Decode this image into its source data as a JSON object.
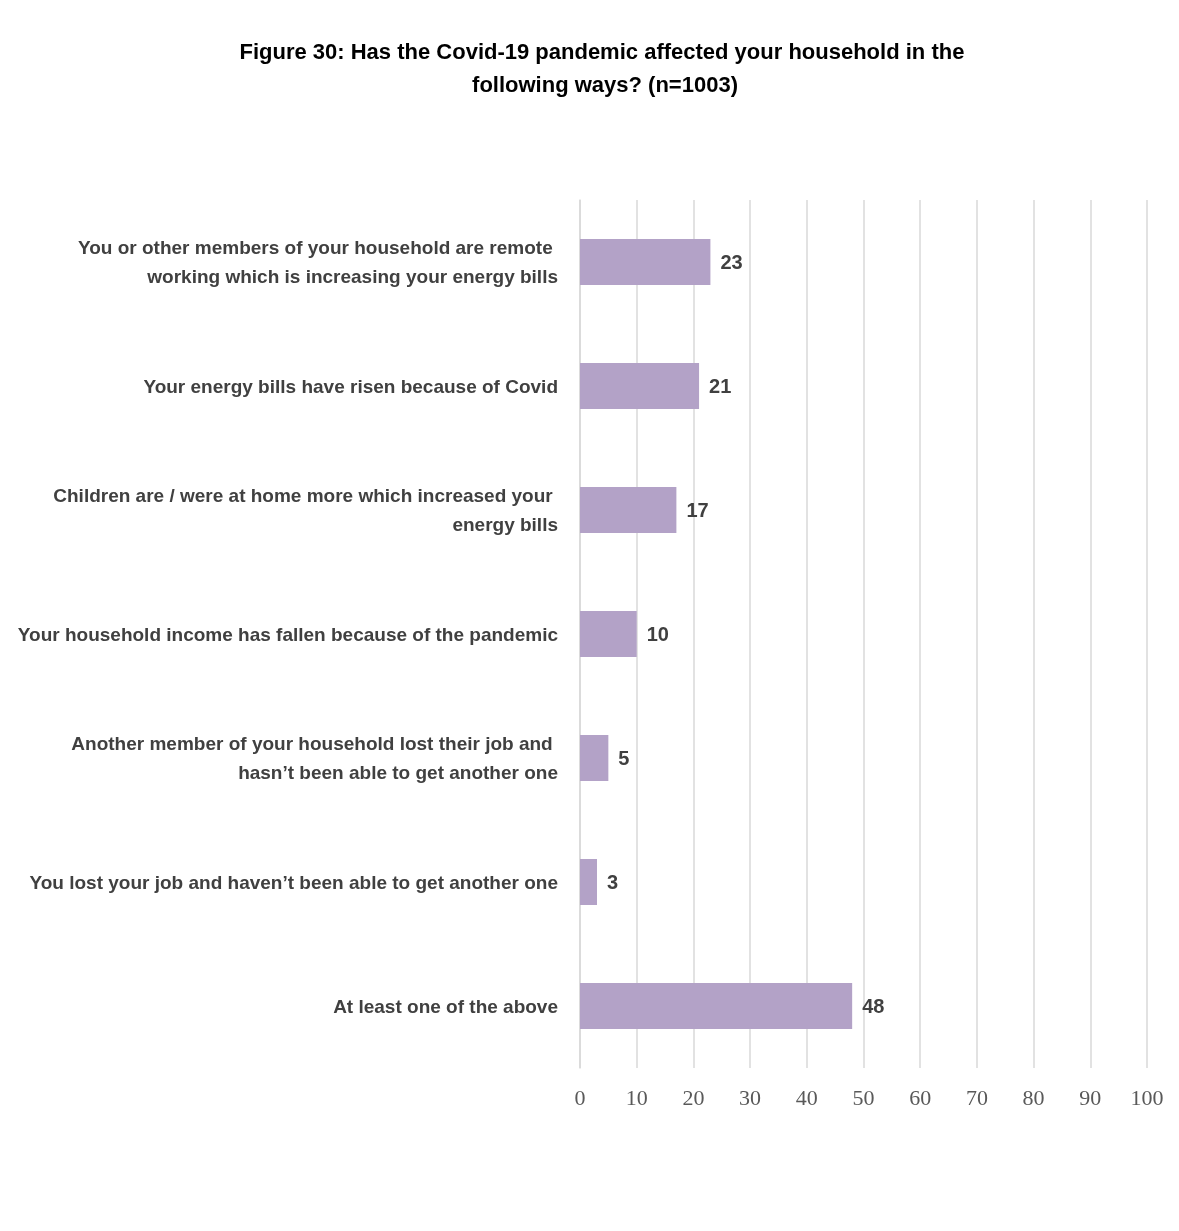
{
  "chart_data": {
    "type": "bar",
    "orientation": "horizontal",
    "title": "Figure 30: Has the Covid-19 pandemic affected your household in the following ways? (n=1003)",
    "categories": [
      "You or other members of your household are remote working which is increasing your energy bills",
      "Your energy bills have risen because of Covid",
      "Children are / were at home more which increased your energy bills",
      "Your household income has fallen because of the pandemic",
      "Another member of your household lost their job and hasn’t been able to get another one",
      "You lost your job and haven’t been able to get another one",
      "At least one of the above"
    ],
    "values": [
      23,
      21,
      17,
      10,
      5,
      3,
      48
    ],
    "color": "#b3a2c7",
    "xlim": [
      0,
      100
    ],
    "xticks": [
      0,
      10,
      20,
      30,
      40,
      50,
      60,
      70,
      80,
      90,
      100
    ],
    "grid": "x",
    "data_labels": true
  }
}
